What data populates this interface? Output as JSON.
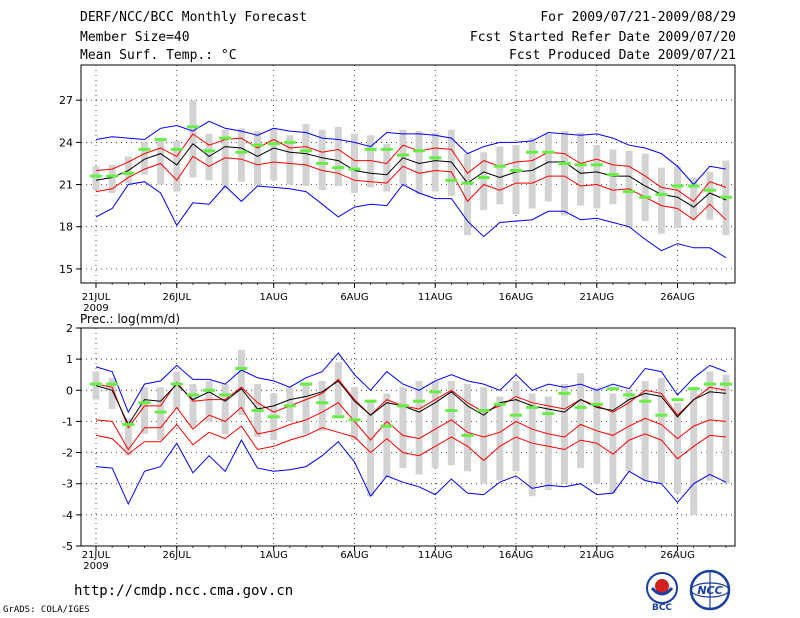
{
  "header": {
    "title": "DERF/NCC/BCC Monthly Forecast",
    "member_size": "Member Size=40",
    "variable": "Mean Surf. Temp.: °C",
    "forecast_period": "For 2009/07/21-2009/08/29",
    "start_date": "Fcst Started Refer Date 2009/07/20",
    "produced_date": "Fcst Produced Date 2009/07/21"
  },
  "footer": {
    "url": "http://cmdp.ncc.cma.gov.cn",
    "grads_credit": "GrADS: COLA/IGES",
    "logo_bcc_text": "BCC",
    "logo_ncc_text": "NCC"
  },
  "colors": {
    "envelope": "#0000ff",
    "spread": "#ff0000",
    "mean": "#000000",
    "bar": "#d3d3d3",
    "obs": "#66ee44"
  },
  "chart_data": [
    {
      "type": "line",
      "title": "Mean Surf. Temp.: °C",
      "days": 40,
      "ylim": [
        14,
        29.5
      ],
      "yticks": [
        15,
        18,
        21,
        24,
        27
      ],
      "xtick_labels": [
        "21JUL",
        "26JUL",
        "1AUG",
        "6AUG",
        "11AUG",
        "16AUG",
        "21AUG",
        "26AUG"
      ],
      "xtick_days": [
        1,
        6,
        12,
        17,
        22,
        27,
        32,
        37
      ],
      "year_label": "2009",
      "series": [
        {
          "name": "max",
          "values": [
            24.2,
            24.4,
            24.3,
            24.2,
            25.0,
            25.2,
            24.8,
            25.5,
            25.0,
            24.8,
            24.5,
            25.0,
            24.8,
            24.7,
            24.3,
            24.2,
            24.0,
            23.7,
            24.7,
            24.6,
            24.6,
            24.5,
            24.3,
            23.2,
            23.7,
            24.0,
            24.0,
            24.1,
            24.7,
            24.6,
            24.5,
            24.6,
            24.3,
            23.8,
            23.6,
            23.2,
            22.3,
            21.0,
            22.3,
            22.1
          ]
        },
        {
          "name": "upper",
          "values": [
            22.0,
            22.1,
            22.6,
            23.2,
            23.6,
            23.0,
            24.6,
            23.8,
            24.2,
            24.3,
            23.6,
            24.2,
            23.6,
            23.7,
            23.3,
            23.5,
            22.7,
            22.7,
            22.5,
            23.8,
            23.4,
            23.6,
            23.5,
            21.8,
            22.7,
            22.3,
            22.6,
            22.7,
            23.3,
            23.2,
            22.5,
            22.8,
            22.4,
            22.3,
            21.6,
            20.8,
            20.6,
            19.8,
            21.2,
            20.8
          ]
        },
        {
          "name": "mean",
          "values": [
            21.3,
            21.5,
            22.0,
            22.8,
            23.2,
            22.4,
            23.9,
            23.0,
            23.7,
            23.6,
            23.0,
            23.6,
            23.3,
            23.2,
            22.9,
            22.7,
            22.0,
            21.8,
            21.7,
            22.9,
            22.5,
            22.7,
            22.6,
            21.1,
            21.9,
            21.5,
            21.9,
            22.0,
            22.6,
            22.6,
            21.8,
            21.9,
            21.6,
            21.6,
            20.9,
            20.3,
            20.1,
            19.4,
            20.4,
            19.9
          ]
        },
        {
          "name": "lower",
          "values": [
            20.5,
            20.7,
            21.5,
            22.1,
            22.5,
            21.3,
            23.0,
            22.3,
            22.9,
            22.8,
            22.4,
            22.6,
            22.5,
            22.4,
            22.0,
            21.8,
            21.3,
            21.2,
            21.1,
            22.3,
            21.8,
            22.0,
            21.9,
            19.8,
            21.0,
            20.6,
            21.1,
            21.1,
            21.6,
            21.6,
            20.9,
            21.0,
            20.6,
            20.7,
            20.1,
            19.5,
            19.3,
            18.5,
            19.6,
            18.5
          ]
        },
        {
          "name": "min",
          "values": [
            18.7,
            19.3,
            21.0,
            21.2,
            20.4,
            18.1,
            19.7,
            19.6,
            20.9,
            19.8,
            20.9,
            20.8,
            20.7,
            20.5,
            19.6,
            18.7,
            19.4,
            19.6,
            19.5,
            21.0,
            20.4,
            20.0,
            20.0,
            18.4,
            17.3,
            18.3,
            18.4,
            18.5,
            19.1,
            19.1,
            18.5,
            18.6,
            18.3,
            18.0,
            17.1,
            16.3,
            16.8,
            16.5,
            16.5,
            15.8
          ]
        },
        {
          "name": "bar_top",
          "values": [
            22.3,
            22.4,
            23.0,
            24.0,
            24.2,
            24.1,
            27.0,
            24.6,
            24.9,
            25.0,
            24.8,
            25.0,
            24.5,
            25.3,
            24.9,
            25.1,
            24.6,
            24.5,
            23.9,
            24.9,
            24.8,
            24.7,
            24.9,
            23.2,
            23.3,
            23.7,
            23.8,
            24.3,
            24.6,
            24.8,
            24.7,
            23.8,
            23.5,
            23.4,
            23.2,
            22.2,
            22.3,
            21.5,
            21.9,
            22.7
          ]
        },
        {
          "name": "bar_bottom",
          "values": [
            20.6,
            20.4,
            21.1,
            21.7,
            21.0,
            20.5,
            21.5,
            21.3,
            20.7,
            21.2,
            20.9,
            21.3,
            21.0,
            20.9,
            20.6,
            20.9,
            20.4,
            20.8,
            20.5,
            21.0,
            20.3,
            20.5,
            20.2,
            17.4,
            19.2,
            19.6,
            18.9,
            19.3,
            19.8,
            18.8,
            19.5,
            19.3,
            19.6,
            18.0,
            18.4,
            17.5,
            17.9,
            18.5,
            18.5,
            17.4
          ]
        },
        {
          "name": "observed",
          "values": [
            21.6,
            21.6,
            21.8,
            23.5,
            24.2,
            23.5,
            25.1,
            23.4,
            24.3,
            23.3,
            23.8,
            23.9,
            24.0,
            23.4,
            22.5,
            22.2,
            22.1,
            23.5,
            23.5,
            23.1,
            23.4,
            22.9,
            21.3,
            21.1,
            21.5,
            22.3,
            22.0,
            23.3,
            23.3,
            22.5,
            22.4,
            22.4,
            21.7,
            20.5,
            20.1,
            20.3,
            20.9,
            20.9,
            20.6,
            20.1
          ]
        }
      ]
    },
    {
      "type": "line",
      "title": "Prec.: log(mm/d)",
      "days": 40,
      "ylim": [
        -5,
        2
      ],
      "yticks": [
        -5,
        -4,
        -3,
        -2,
        -1,
        0,
        1,
        2
      ],
      "xtick_labels": [
        "21JUL",
        "26JUL",
        "1AUG",
        "6AUG",
        "11AUG",
        "16AUG",
        "21AUG",
        "26AUG"
      ],
      "xtick_days": [
        1,
        6,
        12,
        17,
        22,
        27,
        32,
        37
      ],
      "year_label": "2009",
      "series": [
        {
          "name": "max",
          "values": [
            0.75,
            0.6,
            -0.7,
            0.2,
            0.3,
            0.8,
            0.35,
            0.35,
            0.2,
            0.65,
            0.4,
            0.3,
            0.1,
            0.4,
            0.6,
            1.2,
            0.5,
            0.0,
            0.6,
            0.2,
            0.0,
            0.3,
            0.5,
            0.3,
            0.2,
            0.0,
            0.5,
            0.0,
            0.2,
            0.1,
            0.2,
            0.0,
            0.2,
            0.05,
            0.7,
            0.6,
            -0.15,
            0.4,
            0.8,
            0.6
          ]
        },
        {
          "name": "upper",
          "values": [
            0.2,
            0.1,
            -1.2,
            -0.5,
            -0.5,
            0.25,
            -0.35,
            -0.3,
            -0.3,
            0.1,
            -0.4,
            -0.7,
            -0.5,
            -0.3,
            -0.1,
            0.35,
            -0.3,
            -0.8,
            -0.3,
            -0.5,
            -0.6,
            -0.3,
            0.0,
            -0.4,
            -0.7,
            -0.5,
            -0.2,
            -0.4,
            -0.5,
            -0.6,
            -0.3,
            -0.5,
            -0.7,
            -0.4,
            0.0,
            -0.1,
            -0.8,
            -0.3,
            0.1,
            0.0
          ]
        },
        {
          "name": "mean",
          "values": [
            0.15,
            0.0,
            -1.1,
            -0.3,
            -0.35,
            0.2,
            -0.3,
            -0.05,
            -0.35,
            0.05,
            -0.6,
            -0.5,
            -0.3,
            -0.2,
            -0.05,
            0.3,
            -0.35,
            -0.8,
            -0.4,
            -0.5,
            -0.7,
            -0.4,
            -0.05,
            -0.5,
            -0.8,
            -0.4,
            -0.3,
            -0.5,
            -0.6,
            -0.7,
            -0.3,
            -0.55,
            -0.65,
            -0.3,
            -0.1,
            -0.2,
            -0.85,
            -0.3,
            -0.05,
            -0.1
          ]
        },
        {
          "name": "lower",
          "values": [
            -0.95,
            -1.0,
            -1.9,
            -1.2,
            -1.2,
            -0.55,
            -1.25,
            -0.8,
            -1.0,
            -0.55,
            -1.4,
            -1.3,
            -1.1,
            -0.95,
            -0.7,
            -0.4,
            -1.0,
            -1.6,
            -1.0,
            -1.45,
            -1.55,
            -1.25,
            -0.95,
            -1.35,
            -1.5,
            -1.35,
            -1.0,
            -1.25,
            -1.4,
            -1.5,
            -1.1,
            -1.3,
            -1.45,
            -1.15,
            -0.9,
            -1.1,
            -1.55,
            -1.15,
            -0.95,
            -1.0
          ]
        },
        {
          "name": "min_inner",
          "values": [
            -1.45,
            -1.55,
            -2.05,
            -1.65,
            -1.65,
            -1.1,
            -1.75,
            -1.35,
            -1.55,
            -1.15,
            -1.9,
            -1.8,
            -1.6,
            -1.45,
            -1.2,
            -1.35,
            -1.5,
            -2.0,
            -1.55,
            -2.0,
            -2.1,
            -1.8,
            -1.5,
            -1.8,
            -2.25,
            -1.8,
            -1.5,
            -1.7,
            -1.8,
            -1.9,
            -1.6,
            -1.7,
            -2.05,
            -1.6,
            -1.4,
            -1.6,
            -2.2,
            -1.8,
            -1.45,
            -1.5
          ]
        },
        {
          "name": "min",
          "values": [
            -2.45,
            -2.5,
            -3.65,
            -2.6,
            -2.45,
            -1.7,
            -2.65,
            -2.1,
            -2.6,
            -1.6,
            -2.5,
            -2.6,
            -2.55,
            -2.45,
            -2.1,
            -1.65,
            -2.3,
            -3.4,
            -2.75,
            -2.95,
            -3.1,
            -3.35,
            -2.85,
            -3.3,
            -3.35,
            -2.95,
            -2.75,
            -3.15,
            -3.05,
            -3.1,
            -3.0,
            -3.35,
            -3.3,
            -2.6,
            -2.9,
            -3.0,
            -3.6,
            -3.0,
            -2.7,
            -2.95
          ]
        },
        {
          "name": "bar_top",
          "values": [
            0.6,
            0.4,
            -0.9,
            0.1,
            0.1,
            0.6,
            0.2,
            0.3,
            0.2,
            1.3,
            0.2,
            -0.1,
            0.1,
            0.2,
            0.3,
            0.9,
            0.1,
            -0.3,
            -0.1,
            0.1,
            0.3,
            0.3,
            0.3,
            0.2,
            0.1,
            -0.2,
            0.3,
            -0.1,
            -0.2,
            0.2,
            0.55,
            0.1,
            -0.1,
            0.0,
            0.3,
            0.4,
            -0.4,
            0.1,
            0.6,
            0.5
          ]
        },
        {
          "name": "bar_bottom",
          "values": [
            -0.3,
            -0.6,
            -2.1,
            -1.4,
            -1.6,
            -0.6,
            -1.2,
            -1.0,
            -1.4,
            -0.8,
            -1.5,
            -1.6,
            -1.0,
            -1.4,
            -1.3,
            -0.8,
            -1.6,
            -3.4,
            -2.8,
            -2.5,
            -2.7,
            -2.5,
            -2.4,
            -2.6,
            -3.0,
            -2.9,
            -2.6,
            -3.4,
            -3.2,
            -3.0,
            -2.5,
            -3.0,
            -3.3,
            -2.6,
            -2.9,
            -3.0,
            -3.3,
            -4.0,
            -2.9,
            -3.0
          ]
        },
        {
          "name": "observed",
          "values": [
            0.2,
            0.2,
            -1.1,
            -0.4,
            -0.7,
            0.2,
            -0.15,
            0.0,
            -0.15,
            0.7,
            -0.65,
            -0.85,
            -0.5,
            0.2,
            -0.4,
            -0.85,
            -0.95,
            -0.35,
            -1.15,
            -0.5,
            -0.35,
            -0.05,
            -0.65,
            -1.45,
            -0.65,
            -0.45,
            -0.8,
            -0.55,
            -0.75,
            -0.1,
            -0.55,
            -0.45,
            0.05,
            -0.15,
            -0.35,
            -0.8,
            -0.3,
            0.05,
            0.2,
            0.2
          ]
        }
      ]
    }
  ]
}
